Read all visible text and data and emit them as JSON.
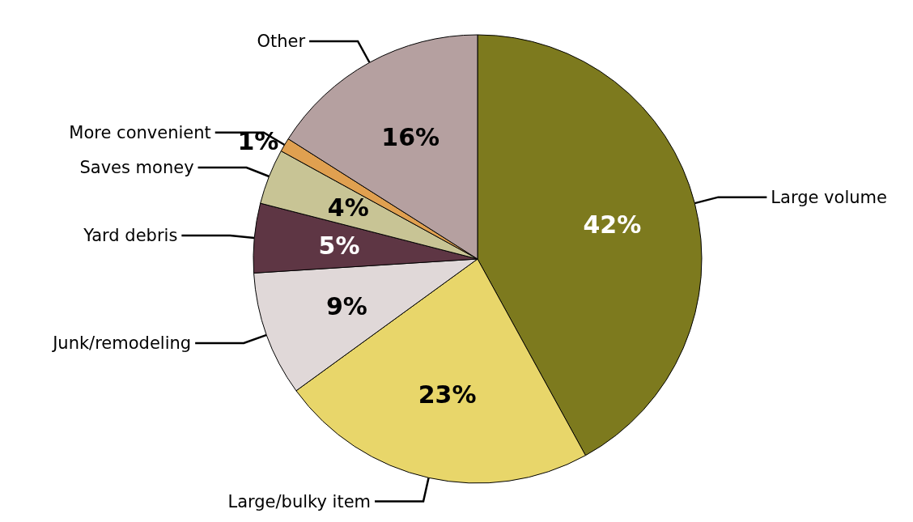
{
  "chart_data": {
    "type": "pie",
    "categories": [
      "Large volume",
      "Large/bulky item",
      "Junk/remodeling",
      "Yard debris",
      "Saves money",
      "More convenient",
      "Other"
    ],
    "values": [
      42,
      23,
      9,
      5,
      4,
      1,
      16
    ],
    "colors": [
      "#7d7a1e",
      "#e8d66a",
      "#e0d8d8",
      "#5e3644",
      "#c8c495",
      "#e0a050",
      "#b5a0a0"
    ],
    "value_labels": [
      "42%",
      "23%",
      "9%",
      "5%",
      "4%",
      "1%",
      "16%"
    ],
    "legend": false
  }
}
